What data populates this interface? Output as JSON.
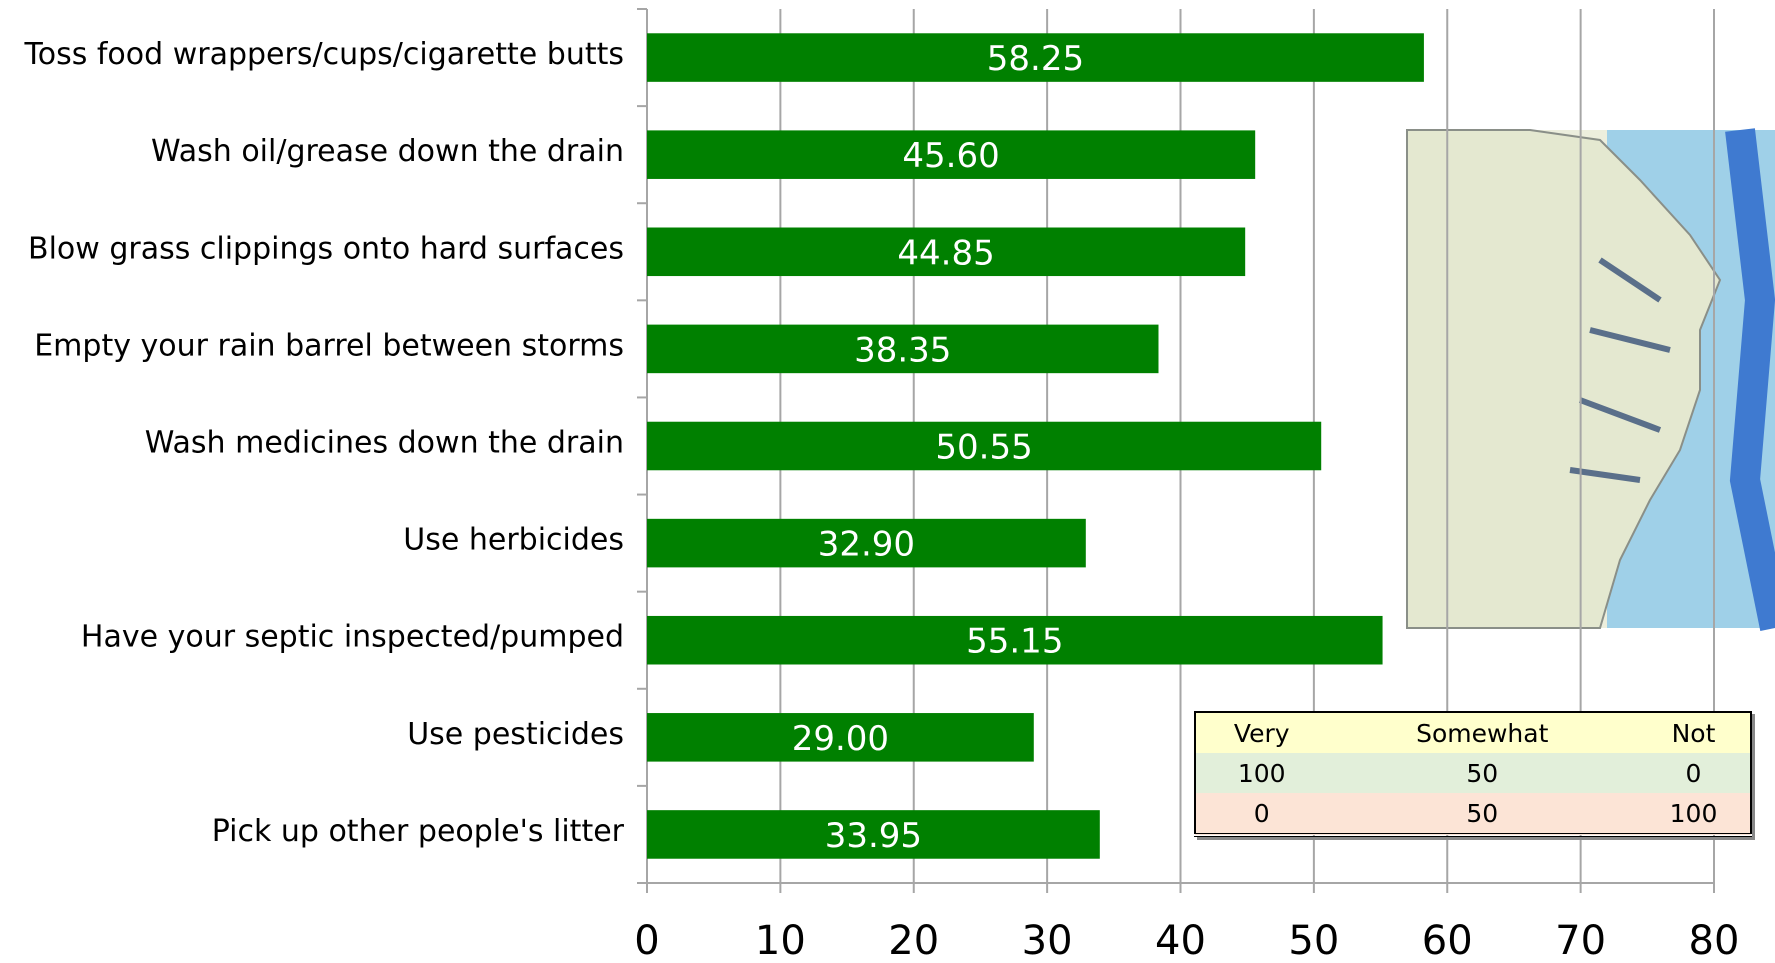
{
  "chart_data": {
    "type": "hbar",
    "categories": [
      "Toss food wrappers/cups/cigarette butts",
      "Wash oil/grease down the drain",
      "Blow grass clippings onto hard surfaces",
      "Empty your rain barrel between storms",
      "Wash medicines down the drain",
      "Use herbicides",
      "Have your septic inspected/pumped",
      "Use pesticides",
      "Pick up other people's litter"
    ],
    "values": [
      58.25,
      45.6,
      44.85,
      38.35,
      50.55,
      32.9,
      55.15,
      29,
      33.95
    ],
    "value_labels": [
      "58.25",
      "45.60",
      "44.85",
      "38.35",
      "50.55",
      "32.90",
      "55.15",
      "29.00",
      "33.95"
    ],
    "color": "#008000",
    "xlim": [
      0,
      80
    ],
    "xticks": [
      0,
      10,
      20,
      30,
      40,
      50,
      60,
      70,
      80
    ],
    "grid": true
  },
  "table": {
    "header": [
      "Very",
      "Somewhat",
      "Not"
    ],
    "rows": [
      [
        100,
        50,
        0
      ],
      [
        0,
        50,
        100
      ]
    ]
  }
}
